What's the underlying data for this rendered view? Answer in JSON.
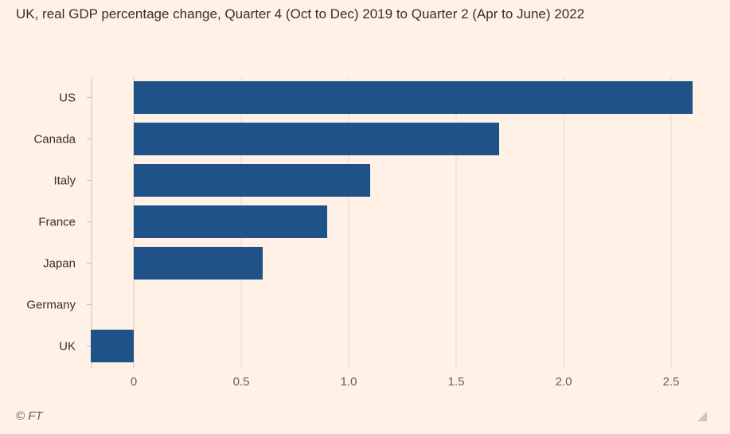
{
  "chart_data": {
    "type": "bar",
    "orientation": "horizontal",
    "title": "UK, real GDP percentage change, Quarter 4 (Oct to Dec) 2019 to Quarter 2 (Apr to June) 2022",
    "categories": [
      "US",
      "Canada",
      "Italy",
      "France",
      "Japan",
      "Germany",
      "UK"
    ],
    "values": [
      2.6,
      1.7,
      1.1,
      0.9,
      0.6,
      0.0,
      -0.2
    ],
    "xlim": [
      -0.2,
      2.7
    ],
    "xticks": [
      0,
      0.5,
      1.0,
      1.5,
      2.0,
      2.5
    ],
    "xtick_labels": [
      "0",
      "0.5",
      "1.0",
      "1.5",
      "2.0",
      "2.5"
    ],
    "xlabel": "",
    "ylabel": "",
    "grid": true,
    "bar_color": "#1f5289"
  },
  "source": "© FT",
  "colors": {
    "background": "#fff1e5",
    "grid": "#e6d9ce",
    "axis": "#ccc1b7",
    "text": "#33302e",
    "muted": "#66605c"
  }
}
